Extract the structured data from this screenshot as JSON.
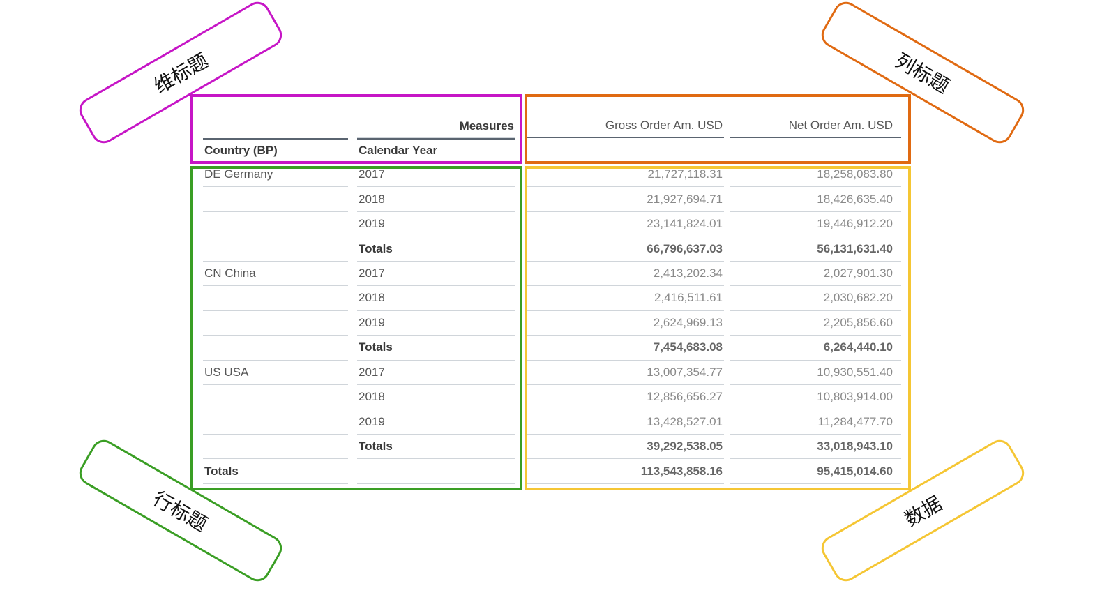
{
  "callouts": {
    "dimension_header": "维标题",
    "column_header": "列标题",
    "row_header": "行标题",
    "data": "数据"
  },
  "colors": {
    "dimension_header": "#c615c6",
    "column_header": "#e06a12",
    "row_header": "#3a9e24",
    "data": "#f5c634"
  },
  "table": {
    "measures_label": "Measures",
    "dim_headers": [
      "Country (BP)",
      "Calendar Year"
    ],
    "measure_headers": [
      "Gross Order Am. USD",
      "Net Order Am. USD"
    ],
    "rows": [
      {
        "country": "DE Germany",
        "year": "2017",
        "gross": "21,727,118.31",
        "net": "18,258,083.80",
        "bold": false
      },
      {
        "country": "",
        "year": "2018",
        "gross": "21,927,694.71",
        "net": "18,426,635.40",
        "bold": false
      },
      {
        "country": "",
        "year": "2019",
        "gross": "23,141,824.01",
        "net": "19,446,912.20",
        "bold": false
      },
      {
        "country": "",
        "year": "Totals",
        "gross": "66,796,637.03",
        "net": "56,131,631.40",
        "bold": true
      },
      {
        "country": "CN China",
        "year": "2017",
        "gross": "2,413,202.34",
        "net": "2,027,901.30",
        "bold": false
      },
      {
        "country": "",
        "year": "2018",
        "gross": "2,416,511.61",
        "net": "2,030,682.20",
        "bold": false
      },
      {
        "country": "",
        "year": "2019",
        "gross": "2,624,969.13",
        "net": "2,205,856.60",
        "bold": false
      },
      {
        "country": "",
        "year": "Totals",
        "gross": "7,454,683.08",
        "net": "6,264,440.10",
        "bold": true
      },
      {
        "country": "US USA",
        "year": "2017",
        "gross": "13,007,354.77",
        "net": "10,930,551.40",
        "bold": false
      },
      {
        "country": "",
        "year": "2018",
        "gross": "12,856,656.27",
        "net": "10,803,914.00",
        "bold": false
      },
      {
        "country": "",
        "year": "2019",
        "gross": "13,428,527.01",
        "net": "11,284,477.70",
        "bold": false
      },
      {
        "country": "",
        "year": "Totals",
        "gross": "39,292,538.05",
        "net": "33,018,943.10",
        "bold": true
      },
      {
        "country": "Totals",
        "year": "",
        "gross": "113,543,858.16",
        "net": "95,415,014.60",
        "bold": true
      }
    ]
  }
}
